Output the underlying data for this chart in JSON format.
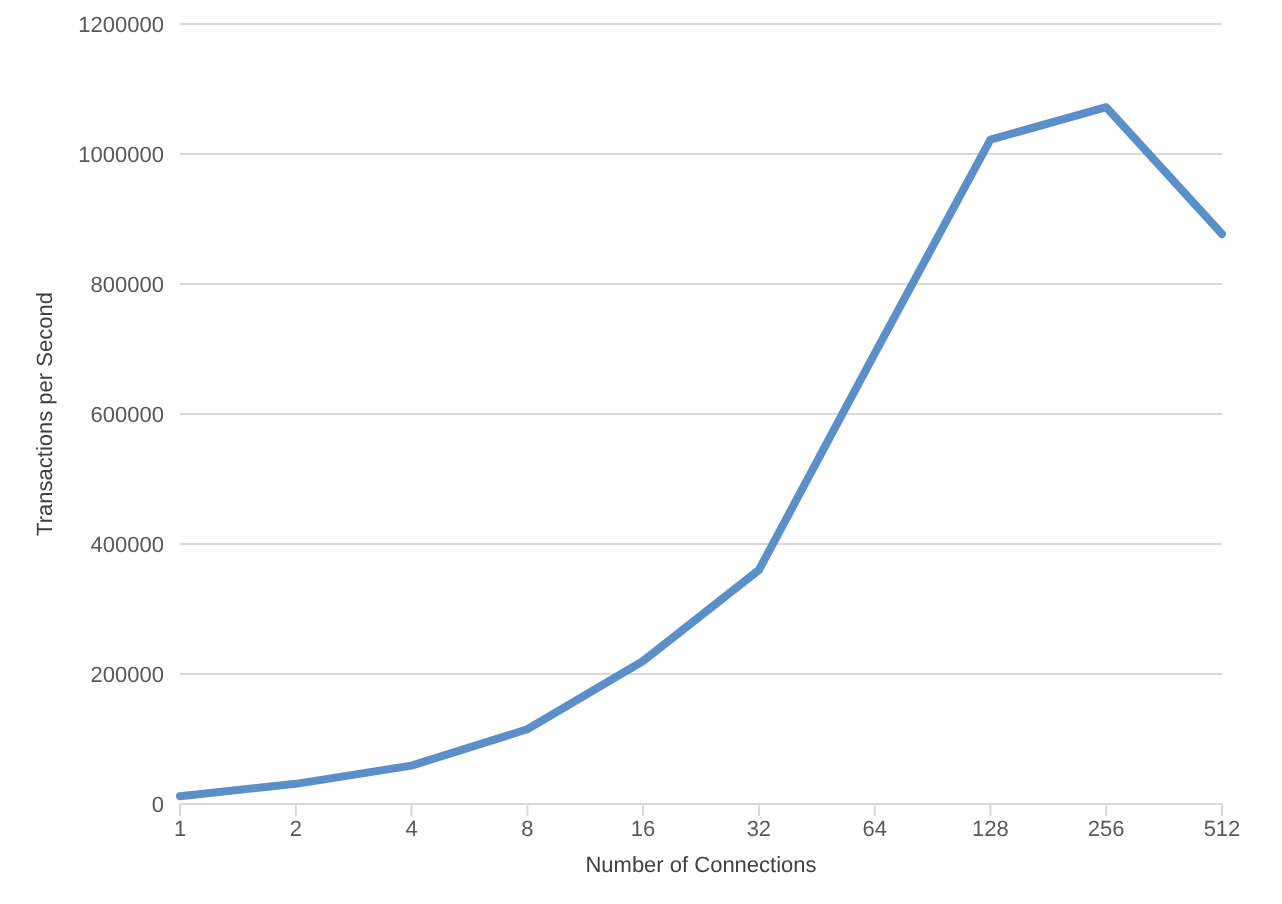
{
  "chart_data": {
    "type": "line",
    "xlabel": "Number of Connections",
    "ylabel": "Transactions per Second",
    "categories": [
      "1",
      "2",
      "4",
      "8",
      "16",
      "32",
      "64",
      "128",
      "256",
      "512"
    ],
    "series": [
      {
        "color": "#5b8fc9",
        "values": [
          12000,
          31000,
          59000,
          115000,
          220000,
          360000,
          693000,
          1022000,
          1072000,
          877000
        ]
      }
    ],
    "ylim": [
      0,
      1200000
    ],
    "yticks": [
      0,
      200000,
      400000,
      600000,
      800000,
      1000000,
      1200000
    ],
    "grid": "y",
    "legend": false,
    "marker": "none",
    "line_style": "solid"
  }
}
